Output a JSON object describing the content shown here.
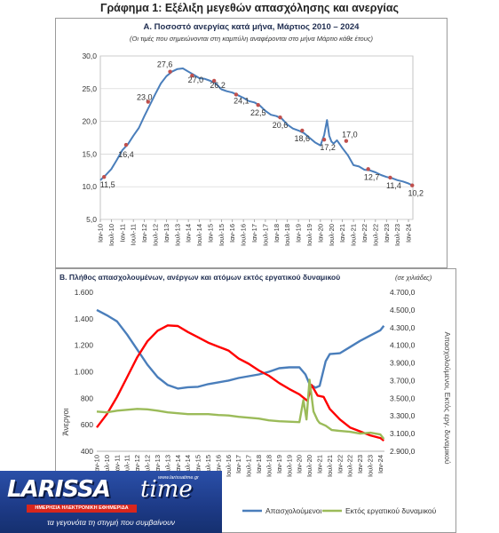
{
  "page": {
    "title": "Γράφημα 1: Εξέλιξη μεγεθών απασχόλησης και ανεργίας"
  },
  "chart_data": [
    {
      "type": "line",
      "title": "Α. Ποσοστό ανεργίας κατά μήνα, Μάρτιος 2010 – 2024",
      "subtitle": "(Οι τιμές που σημειώνονται στη καμπύλη αναφέρονται στο μήνα Μάρτιο κάθε έτους)",
      "ylim": [
        5.0,
        30.0
      ],
      "yticks": [
        "5,0",
        "10,0",
        "15,0",
        "20,0",
        "25,0",
        "30,0"
      ],
      "xticks": [
        "Ιαν-10",
        "Ιουλ-10",
        "Ιαν-11",
        "Ιουλ-11",
        "Ιαν-12",
        "Ιουλ-12",
        "Ιαν-13",
        "Ιουλ-13",
        "Ιαν-14",
        "Ιουλ-14",
        "Ιαν-15",
        "Ιουλ-15",
        "Ιαν-16",
        "Ιουλ-16",
        "Ιαν-17",
        "Ιουλ-17",
        "Ιαν-18",
        "Ιουλ-18",
        "Ιαν-19",
        "Ιουλ-19",
        "Ιαν-20",
        "Ιουλ-20",
        "Ιαν-21",
        "Ιουλ-21",
        "Ιαν-22",
        "Ιουλ-22",
        "Ιαν-23",
        "Ιουλ-23",
        "Ιαν-24"
      ],
      "line_color": "#4a7ebb",
      "marker_color": "#c0504d",
      "series": [
        {
          "x": [
            2010.0,
            2010.25,
            2010.5,
            2010.75,
            2011.0,
            2011.25,
            2011.5,
            2011.75,
            2012.0,
            2012.25,
            2012.5,
            2012.75,
            2013.0,
            2013.25,
            2013.5,
            2013.75,
            2014.0,
            2014.25,
            2014.5,
            2014.75,
            2015.0,
            2015.25,
            2015.5,
            2015.75,
            2016.0,
            2016.25,
            2016.5,
            2016.75,
            2017.0,
            2017.25,
            2017.5,
            2017.75,
            2018.0,
            2018.25,
            2018.5,
            2018.75,
            2019.0,
            2019.25,
            2019.5,
            2019.75,
            2020.0,
            2020.17,
            2020.3,
            2020.4,
            2020.5,
            2020.6,
            2020.75,
            2021.0,
            2021.25,
            2021.5,
            2021.75,
            2022.0,
            2022.25,
            2022.5,
            2022.75,
            2023.0,
            2023.25,
            2023.5,
            2023.75,
            2024.0,
            2024.17
          ],
          "y": [
            11.0,
            11.8,
            12.7,
            14.1,
            15.6,
            16.5,
            17.8,
            19.0,
            20.8,
            22.5,
            24.2,
            25.8,
            26.9,
            27.6,
            28.0,
            28.1,
            27.6,
            27.1,
            26.6,
            26.5,
            26.2,
            25.8,
            24.9,
            24.6,
            24.4,
            24.0,
            23.6,
            23.1,
            22.9,
            22.4,
            21.6,
            21.0,
            20.8,
            20.4,
            19.5,
            18.9,
            18.6,
            18.2,
            17.5,
            16.8,
            16.3,
            17.9,
            20.2,
            17.8,
            16.9,
            16.6,
            17.1,
            15.9,
            14.8,
            13.3,
            13.1,
            12.6,
            12.5,
            12.2,
            11.8,
            11.5,
            11.3,
            11.0,
            10.8,
            10.5,
            10.2
          ]
        }
      ],
      "annotations": [
        {
          "x": 2010.17,
          "y": 11.5,
          "label": "11,5"
        },
        {
          "x": 2011.17,
          "y": 16.4,
          "label": "16,4"
        },
        {
          "x": 2012.17,
          "y": 23.0,
          "label": "23,0"
        },
        {
          "x": 2013.17,
          "y": 27.6,
          "label": "27,6"
        },
        {
          "x": 2014.17,
          "y": 27.0,
          "label": "27,0"
        },
        {
          "x": 2015.17,
          "y": 26.2,
          "label": "26,2"
        },
        {
          "x": 2016.17,
          "y": 24.1,
          "label": "24,1"
        },
        {
          "x": 2017.17,
          "y": 22.5,
          "label": "22,5"
        },
        {
          "x": 2018.17,
          "y": 20.6,
          "label": "20,6"
        },
        {
          "x": 2019.17,
          "y": 18.6,
          "label": "18,6"
        },
        {
          "x": 2020.17,
          "y": 17.2,
          "label": "17,2"
        },
        {
          "x": 2021.17,
          "y": 17.0,
          "label": "17,0"
        },
        {
          "x": 2022.17,
          "y": 12.7,
          "label": "12,7"
        },
        {
          "x": 2023.17,
          "y": 11.4,
          "label": "11,4"
        },
        {
          "x": 2024.17,
          "y": 10.2,
          "label": "10,2"
        }
      ]
    },
    {
      "type": "line",
      "title": "Β. Πλήθος απασχολουμένων, ανέργων και ατόμων εκτός εργατικού δυναμικού",
      "subtitle": "(σε χιλιάδες)",
      "ylabel": "Άνεργοι",
      "y2label": "Απασχολούμενοι, Εκτός εργ. δυναμικού",
      "ylim": [
        400,
        1600
      ],
      "y2lim": [
        2900,
        4700
      ],
      "yticks": [
        "400",
        "600",
        "800",
        "1.000",
        "1.200",
        "1.400",
        "1.600"
      ],
      "y2ticks": [
        "2.900,0",
        "3.100,0",
        "3.300,0",
        "3.500,0",
        "3.700,0",
        "3.900,0",
        "4.100,0",
        "4.300,0",
        "4.500,0",
        "4.700,0"
      ],
      "xticks": [
        "Ιαν-10",
        "Ιουλ-10",
        "Ιαν-11",
        "Ιουλ-11",
        "Ιαν-12",
        "Ιουλ-12",
        "Ιαν-13",
        "Ιουλ-13",
        "Ιαν-14",
        "Ιουλ-14",
        "Ιαν-15",
        "Ιουλ-15",
        "Ιαν-16",
        "Ιουλ-16",
        "Ιαν-17",
        "Ιουλ-17",
        "Ιαν-18",
        "Ιουλ-18",
        "Ιαν-19",
        "Ιουλ-19",
        "Ιαν-20",
        "Ιουλ-20",
        "Ιαν-21",
        "Ιουλ-21",
        "Ιαν-22",
        "Ιουλ-22",
        "Ιαν-23",
        "Ιουλ-23",
        "Ιαν-24"
      ],
      "series": [
        {
          "name": "Απασχολούμενοι",
          "axis": "right",
          "color": "#4a7ebb",
          "x": [
            2010.0,
            2010.5,
            2011.0,
            2011.5,
            2012.0,
            2012.5,
            2013.0,
            2013.5,
            2014.0,
            2014.5,
            2015.0,
            2015.5,
            2016.0,
            2016.5,
            2017.0,
            2017.5,
            2018.0,
            2018.5,
            2019.0,
            2019.5,
            2020.0,
            2020.3,
            2020.5,
            2020.8,
            2021.0,
            2021.3,
            2021.5,
            2022.0,
            2022.5,
            2023.0,
            2023.5,
            2024.0,
            2024.17
          ],
          "y": [
            4500,
            4440,
            4370,
            4220,
            4050,
            3880,
            3740,
            3650,
            3610,
            3625,
            3630,
            3660,
            3680,
            3700,
            3730,
            3750,
            3770,
            3800,
            3840,
            3850,
            3850,
            3770,
            3660,
            3620,
            3640,
            3920,
            4000,
            4010,
            4080,
            4150,
            4210,
            4270,
            4320
          ]
        },
        {
          "name": "Άνεργοι",
          "axis": "left",
          "color": "#ff0000",
          "x": [
            2010.0,
            2010.5,
            2011.0,
            2011.5,
            2012.0,
            2012.5,
            2013.0,
            2013.5,
            2014.0,
            2014.5,
            2015.0,
            2015.5,
            2016.0,
            2016.5,
            2017.0,
            2017.5,
            2018.0,
            2018.5,
            2019.0,
            2019.5,
            2020.0,
            2020.4,
            2020.6,
            2020.9,
            2021.2,
            2021.5,
            2022.0,
            2022.5,
            2023.0,
            2023.5,
            2024.0,
            2024.17
          ],
          "y": [
            580,
            680,
            810,
            960,
            1110,
            1230,
            1310,
            1350,
            1345,
            1300,
            1260,
            1220,
            1190,
            1160,
            1100,
            1060,
            1010,
            970,
            915,
            870,
            830,
            780,
            900,
            820,
            810,
            720,
            640,
            580,
            550,
            520,
            500,
            480
          ]
        },
        {
          "name": "Εκτός εργατικού δυναμικού",
          "axis": "right",
          "color": "#9bbb59",
          "x": [
            2010.0,
            2010.5,
            2011.0,
            2011.5,
            2012.0,
            2012.5,
            2013.0,
            2013.5,
            2014.0,
            2014.5,
            2015.0,
            2015.5,
            2016.0,
            2016.5,
            2017.0,
            2017.5,
            2018.0,
            2018.5,
            2019.0,
            2019.5,
            2020.0,
            2020.2,
            2020.35,
            2020.5,
            2020.7,
            2020.9,
            2021.0,
            2021.3,
            2021.6,
            2022.0,
            2022.5,
            2023.0,
            2023.5,
            2024.0,
            2024.17
          ],
          "y": [
            3350,
            3340,
            3360,
            3370,
            3380,
            3375,
            3360,
            3340,
            3330,
            3320,
            3320,
            3320,
            3310,
            3305,
            3290,
            3280,
            3270,
            3250,
            3240,
            3235,
            3230,
            3480,
            3260,
            3710,
            3350,
            3250,
            3220,
            3190,
            3140,
            3130,
            3120,
            3100,
            3110,
            3090,
            3040
          ]
        }
      ],
      "legend": [
        {
          "label": "Απασχολούμενοι",
          "color": "#4a7ebb"
        },
        {
          "label": "Εκτός εργατικού δυναμικού",
          "color": "#9bbb59"
        }
      ]
    }
  ],
  "logo": {
    "word": "LARISSA",
    "word2": "time",
    "site": "www.larissatime.gr",
    "subtitle": "ΗΜΕΡΗΣΙΑ ΗΛΕΚΤΡΟΝΙΚΗ ΕΦΗΜΕΡΙΔΑ",
    "tagline": "τα γεγονότα τη στιγμή που συμβαίνουν"
  }
}
